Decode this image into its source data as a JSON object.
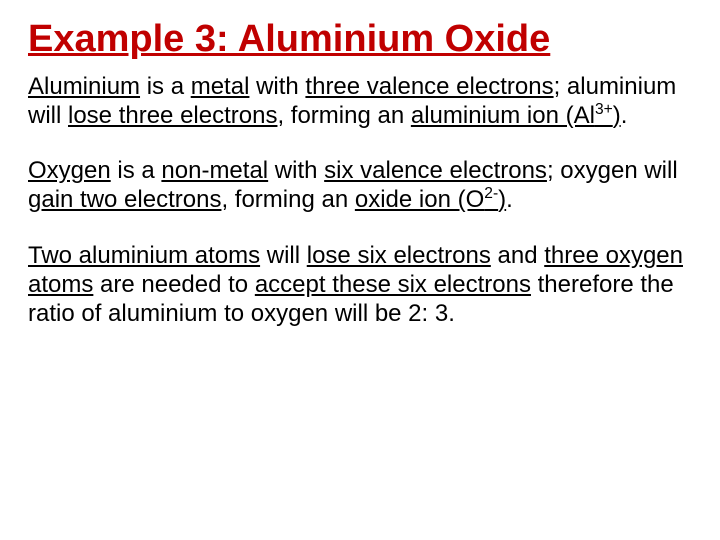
{
  "title": "Example 3: Aluminium Oxide",
  "title_color": "#c00000",
  "title_fontsize": 38,
  "body_fontsize": 24,
  "body_color": "#000000",
  "background_color": "#ffffff",
  "paragraphs": [
    {
      "runs": [
        {
          "t": "Aluminium",
          "u": true
        },
        {
          "t": " is a "
        },
        {
          "t": "metal",
          "u": true
        },
        {
          "t": " with "
        },
        {
          "t": "three valence electrons",
          "u": true
        },
        {
          "t": "; aluminium will "
        },
        {
          "t": "lose three electrons",
          "u": true
        },
        {
          "t": ", forming an "
        },
        {
          "t": "aluminium ion (Al",
          "u": true
        },
        {
          "t": "3+",
          "u": true,
          "sup": true
        },
        {
          "t": ")",
          "u": true
        },
        {
          "t": "."
        }
      ]
    },
    {
      "runs": [
        {
          "t": "Oxygen",
          "u": true
        },
        {
          "t": " is a "
        },
        {
          "t": "non-metal",
          "u": true
        },
        {
          "t": " with "
        },
        {
          "t": "six valence electrons",
          "u": true
        },
        {
          "t": "; oxygen will "
        },
        {
          "t": "gain two electrons",
          "u": true
        },
        {
          "t": ", forming an "
        },
        {
          "t": "oxide ion (O",
          "u": true
        },
        {
          "t": "2-",
          "u": true,
          "sup": true
        },
        {
          "t": ")",
          "u": true
        },
        {
          "t": "."
        }
      ]
    },
    {
      "runs": [
        {
          "t": "Two aluminium atoms",
          "u": true
        },
        {
          "t": " will "
        },
        {
          "t": "lose six electrons",
          "u": true
        },
        {
          "t": " and "
        },
        {
          "t": "three oxygen atoms",
          "u": true
        },
        {
          "t": " are needed to "
        },
        {
          "t": "accept these six electrons",
          "u": true
        },
        {
          "t": " therefore the ratio of aluminium to oxygen will be 2: 3."
        }
      ]
    }
  ]
}
